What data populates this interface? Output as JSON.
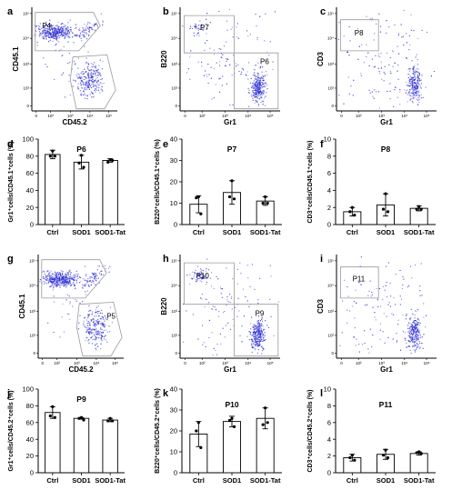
{
  "tick_labels": {
    "y": [
      "10⁵",
      "10⁴",
      "10³",
      "10²",
      "0"
    ],
    "x": [
      "0",
      "10²",
      "10³",
      "10⁴",
      "10⁵"
    ]
  },
  "colors": {
    "dots": "#2b2bd4",
    "gates": "#9a9a9a",
    "bars": "#ffffff",
    "edge": "#000000"
  },
  "flow_panels": [
    {
      "letter": "a",
      "xlabel": "CD45.2",
      "ylabel": "CD45.1",
      "gates": [
        "P4"
      ]
    },
    {
      "letter": "b",
      "xlabel": "Gr1",
      "ylabel": "B220",
      "gates": [
        "P7",
        "P6"
      ]
    },
    {
      "letter": "c",
      "xlabel": "Gr1",
      "ylabel": "CD3",
      "gates": [
        "P8"
      ]
    },
    {
      "letter": "g",
      "xlabel": "CD45.2",
      "ylabel": "CD45.1",
      "gates": [
        "P5"
      ]
    },
    {
      "letter": "h",
      "xlabel": "Gr1",
      "ylabel": "B220",
      "gates": [
        "P10",
        "P9"
      ]
    },
    {
      "letter": "i",
      "xlabel": "Gr1",
      "ylabel": "CD3",
      "gates": [
        "P11"
      ]
    }
  ],
  "chart_data": [
    {
      "letter": "d",
      "type": "bar",
      "title": "P6",
      "ylabel": "Gr1⁺cells/CD45.1⁺cells (%)",
      "categories": [
        "Ctrl",
        "SOD1",
        "SOD1-Tat"
      ],
      "values": [
        82,
        73,
        75
      ],
      "errors": [
        5,
        8,
        2
      ],
      "points": [
        [
          86,
          80,
          80
        ],
        [
          81,
          72,
          67
        ],
        [
          76,
          73,
          75
        ]
      ],
      "ylim": [
        0,
        100
      ],
      "yticks": [
        0,
        20,
        40,
        60,
        80,
        100
      ]
    },
    {
      "letter": "e",
      "type": "bar",
      "title": "P7",
      "ylabel": "B220⁺cells/CD45.1⁺cells (%)",
      "categories": [
        "Ctrl",
        "SOD1",
        "SOD1-Tat"
      ],
      "values": [
        9.5,
        15,
        11
      ],
      "errors": [
        4,
        5.5,
        2
      ],
      "points": [
        [
          13,
          12.5,
          5
        ],
        [
          20.5,
          13,
          12
        ],
        [
          13,
          10,
          10
        ]
      ],
      "ylim": [
        0,
        40
      ],
      "yticks": [
        0,
        10,
        20,
        30,
        40
      ]
    },
    {
      "letter": "f",
      "type": "bar",
      "title": "P8",
      "ylabel": "CD3⁺cells/CD45.1⁺cells (%)",
      "categories": [
        "Ctrl",
        "SOD1",
        "SOD1-Tat"
      ],
      "values": [
        1.5,
        2.3,
        1.9
      ],
      "errors": [
        0.5,
        1.3,
        0.3
      ],
      "points": [
        [
          2,
          1.5,
          1.1
        ],
        [
          3.6,
          1.8,
          1.5
        ],
        [
          2.1,
          1.8,
          1.8
        ]
      ],
      "ylim": [
        0,
        10
      ],
      "yticks": [
        0,
        2,
        4,
        6,
        8,
        10
      ]
    },
    {
      "letter": "j",
      "type": "bar",
      "title": "P9",
      "ylabel": "Gr1⁺cells/CD45.2⁺cells (%)",
      "categories": [
        "Ctrl",
        "SOD1",
        "SOD1-Tat"
      ],
      "values": [
        72,
        65,
        63
      ],
      "errors": [
        7,
        1,
        2
      ],
      "points": [
        [
          79,
          68,
          66
        ],
        [
          66,
          65,
          63
        ],
        [
          65,
          62,
          62
        ]
      ],
      "ylim": [
        0,
        100
      ],
      "yticks": [
        0,
        20,
        40,
        60,
        80,
        100
      ]
    },
    {
      "letter": "k",
      "type": "bar",
      "title": "P10",
      "ylabel": "B220⁺cells/CD45.2⁺cells (%)",
      "categories": [
        "Ctrl",
        "SOD1",
        "SOD1-Tat"
      ],
      "values": [
        18.5,
        24.5,
        26
      ],
      "errors": [
        6,
        2.5,
        5
      ],
      "points": [
        [
          24,
          20,
          12
        ],
        [
          26,
          25,
          22
        ],
        [
          31,
          23,
          24
        ]
      ],
      "ylim": [
        0,
        40
      ],
      "yticks": [
        0,
        10,
        20,
        30,
        40
      ]
    },
    {
      "letter": "l",
      "type": "bar",
      "title": "P11",
      "ylabel": "CD3⁺cells/CD45.2⁺cells (%)",
      "categories": [
        "Ctrl",
        "SOD1",
        "SOD1-Tat"
      ],
      "values": [
        1.8,
        2.2,
        2.3
      ],
      "errors": [
        0.4,
        0.6,
        0.2
      ],
      "points": [
        [
          2.1,
          1.8,
          1.5
        ],
        [
          2.7,
          2.1,
          1.8
        ],
        [
          2.5,
          2.4,
          2.3
        ]
      ],
      "ylim": [
        0,
        10
      ],
      "yticks": [
        0,
        2,
        4,
        6,
        8,
        10
      ]
    }
  ]
}
